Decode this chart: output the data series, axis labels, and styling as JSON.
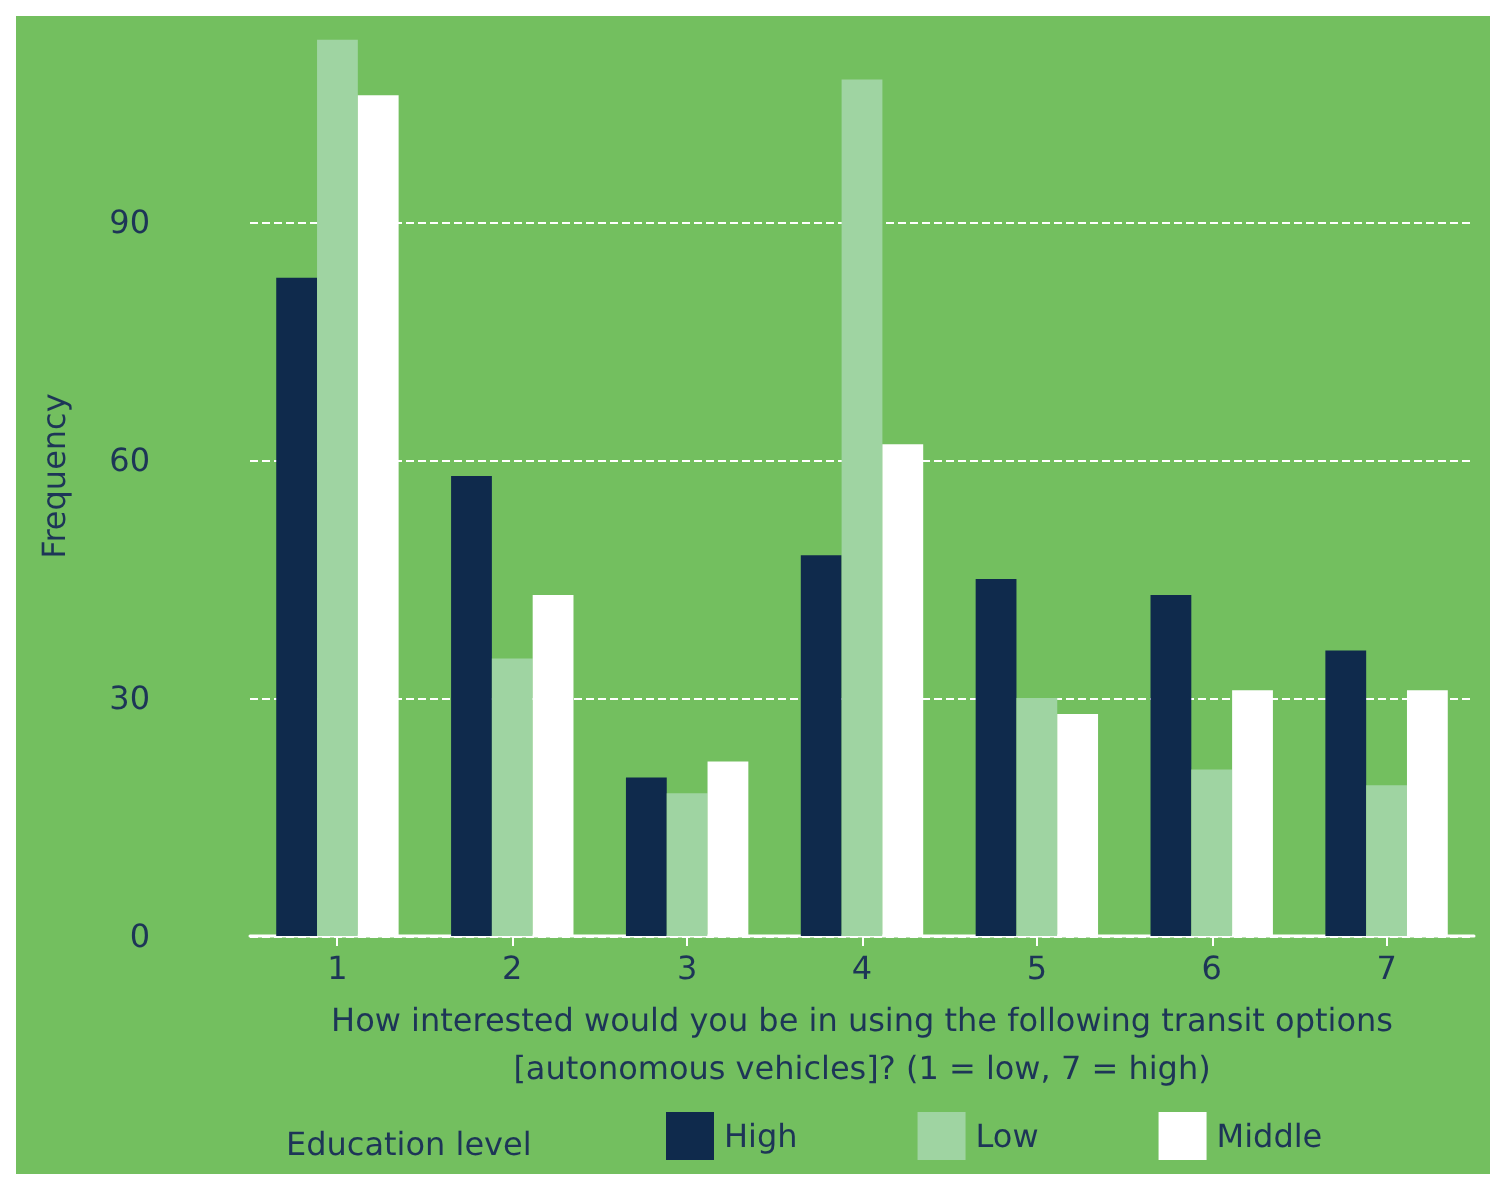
{
  "chart_data": {
    "type": "bar",
    "xlabel": "How interested would you be in using the following transit options\n[autonomous vehicles]? (1 = low, 7 = high)",
    "ylabel": "Frequency",
    "legend_title": "Education level",
    "categories": [
      "1",
      "2",
      "3",
      "4",
      "5",
      "6",
      "7"
    ],
    "series": [
      {
        "name": "High",
        "color": "#0f2a4c",
        "values": [
          83,
          58,
          20,
          48,
          45,
          43,
          36
        ]
      },
      {
        "name": "Low",
        "color": "#9fd4a2",
        "values": [
          113,
          35,
          18,
          108,
          30,
          21,
          19
        ]
      },
      {
        "name": "Middle",
        "color": "#ffffff",
        "values": [
          106,
          43,
          22,
          62,
          28,
          31,
          31
        ]
      }
    ],
    "ylim": [
      0,
      116
    ],
    "yticks": [
      0,
      30,
      60,
      90
    ],
    "grid": "y",
    "legend": "bottom"
  }
}
